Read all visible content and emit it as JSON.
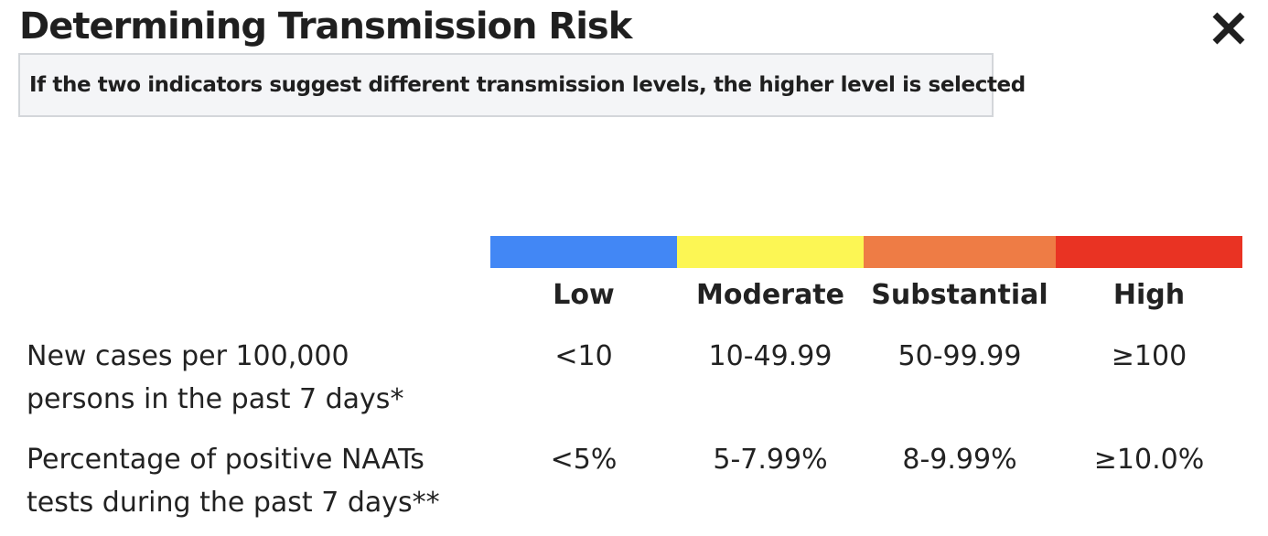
{
  "dialog": {
    "title": "Determining Transmission Risk",
    "close_icon": "close-icon",
    "note": "If the two indicators suggest different transmission levels, the higher level is selected"
  },
  "levels": [
    {
      "label": "Low",
      "color": "#4287f5"
    },
    {
      "label": "Moderate",
      "color": "#fcf654"
    },
    {
      "label": "Substantial",
      "color": "#ee7c45"
    },
    {
      "label": "High",
      "color": "#e93323"
    }
  ],
  "table": {
    "rows": [
      {
        "label_line1": "New cases per 100,000",
        "label_line2": "persons in the past 7 days*",
        "values": [
          "<10",
          "10-49.99",
          "50-99.99",
          "≥100"
        ]
      },
      {
        "label_line1": "Percentage of positive NAATs",
        "label_line2": "tests during the past 7 days**",
        "values": [
          "<5%",
          "5-7.99%",
          "8-9.99%",
          "≥10.0%"
        ]
      }
    ]
  }
}
